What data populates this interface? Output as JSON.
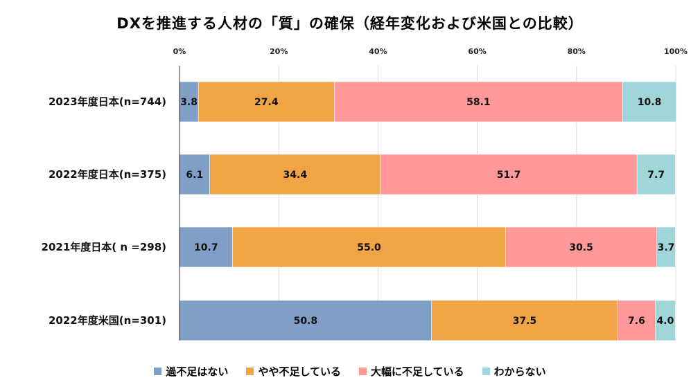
{
  "chart_data": {
    "type": "bar",
    "orientation": "horizontal",
    "stacked": true,
    "title": "DXを推進する人材の「質」の確保（経年変化および米国との比較）",
    "categories": [
      "2023年度日本(n=744)",
      "2022年度日本(n=375)",
      "2021年度日本( n =298)",
      "2022年度米国(n=301)"
    ],
    "series": [
      {
        "name": "過不足はない",
        "color": "#7f9fc6",
        "values": [
          3.8,
          6.1,
          10.7,
          50.8
        ]
      },
      {
        "name": "やや不足している",
        "color": "#f0a446",
        "values": [
          27.4,
          34.4,
          55.0,
          37.5
        ]
      },
      {
        "name": "大幅に不足している",
        "color": "#ff9999",
        "values": [
          58.1,
          51.7,
          30.5,
          7.6
        ]
      },
      {
        "name": "わからない",
        "color": "#9ed6da",
        "values": [
          10.8,
          7.7,
          3.7,
          4.0
        ]
      }
    ],
    "xlim": [
      0,
      100
    ],
    "xticks": [
      "0%",
      "20%",
      "40%",
      "60%",
      "80%",
      "100%"
    ],
    "xtick_position": "top",
    "grid": true,
    "legend_position": "bottom"
  }
}
